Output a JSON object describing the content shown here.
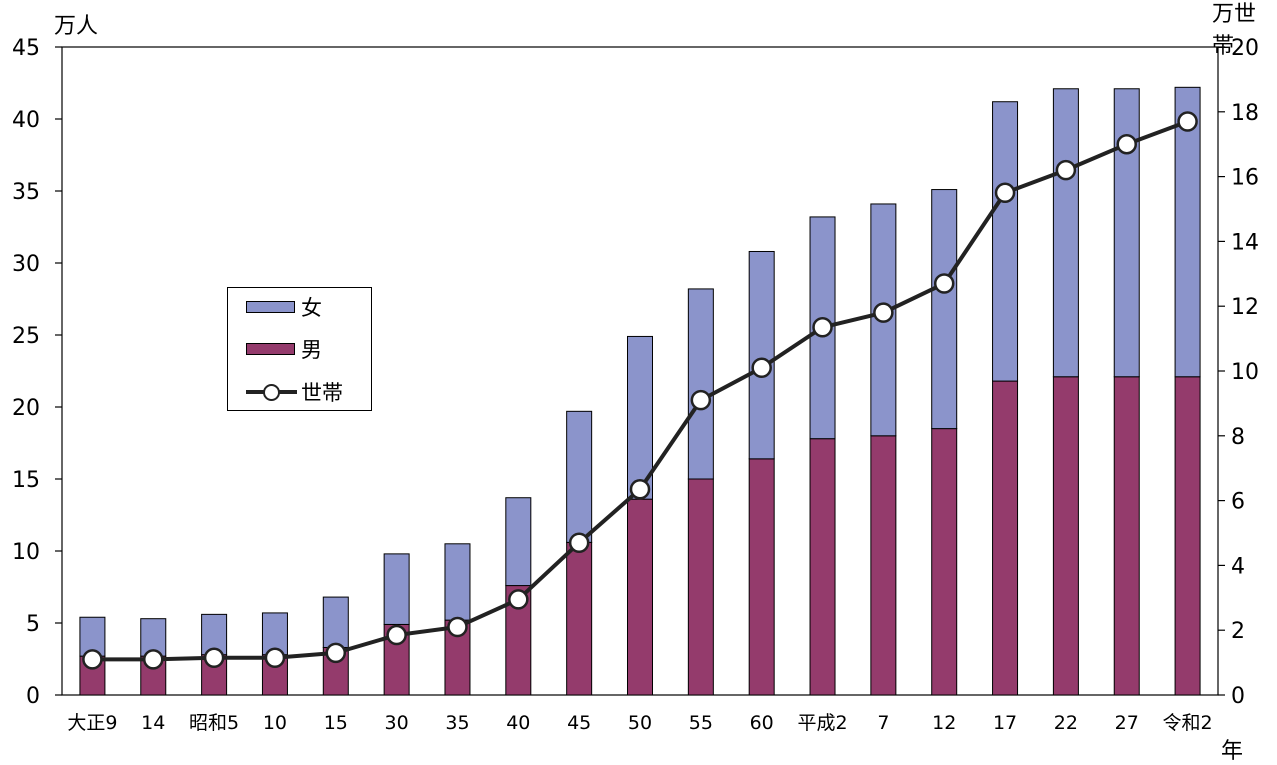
{
  "chart_data": {
    "type": "bar",
    "stacked": true,
    "categories": [
      "大正9",
      "14",
      "昭和5",
      "10",
      "15",
      "30",
      "35",
      "40",
      "45",
      "50",
      "55",
      "60",
      "平成2",
      "7",
      "12",
      "17",
      "22",
      "27",
      "令和2"
    ],
    "series": [
      {
        "name": "男",
        "axis": "left",
        "color": "#943b6c",
        "values": [
          2.7,
          2.7,
          2.8,
          2.8,
          3.3,
          4.9,
          5.2,
          7.6,
          10.6,
          13.6,
          15.0,
          16.4,
          17.8,
          18.0,
          18.5,
          21.8,
          22.1,
          22.1,
          22.1
        ]
      },
      {
        "name": "女",
        "axis": "left",
        "color": "#8b94cb",
        "values": [
          2.7,
          2.6,
          2.8,
          2.9,
          3.5,
          4.9,
          5.3,
          6.1,
          9.1,
          11.3,
          13.2,
          14.4,
          15.4,
          16.1,
          16.6,
          19.4,
          20.0,
          20.0,
          20.1
        ]
      },
      {
        "name": "世帯",
        "axis": "right",
        "type": "line",
        "color": "#222222",
        "values": [
          1.1,
          1.1,
          1.15,
          1.15,
          1.3,
          1.85,
          2.1,
          2.95,
          4.7,
          6.35,
          9.1,
          10.1,
          11.35,
          11.8,
          12.7,
          15.5,
          16.2,
          17.0,
          17.7
        ]
      }
    ],
    "y_left": {
      "unit": "万人",
      "min": 0,
      "max": 45,
      "ticks": [
        "0",
        "5",
        "10",
        "15",
        "20",
        "25",
        "30",
        "35",
        "40",
        "45"
      ]
    },
    "y_right": {
      "unit": "万世帯",
      "min": 0,
      "max": 20,
      "ticks": [
        "0",
        "2",
        "4",
        "6",
        "8",
        "10",
        "12",
        "14",
        "16",
        "18",
        "20"
      ]
    },
    "x_unit": "年",
    "legend": {
      "position": "left-middle",
      "items": [
        "女",
        "男",
        "世帯"
      ]
    },
    "grid": false
  }
}
